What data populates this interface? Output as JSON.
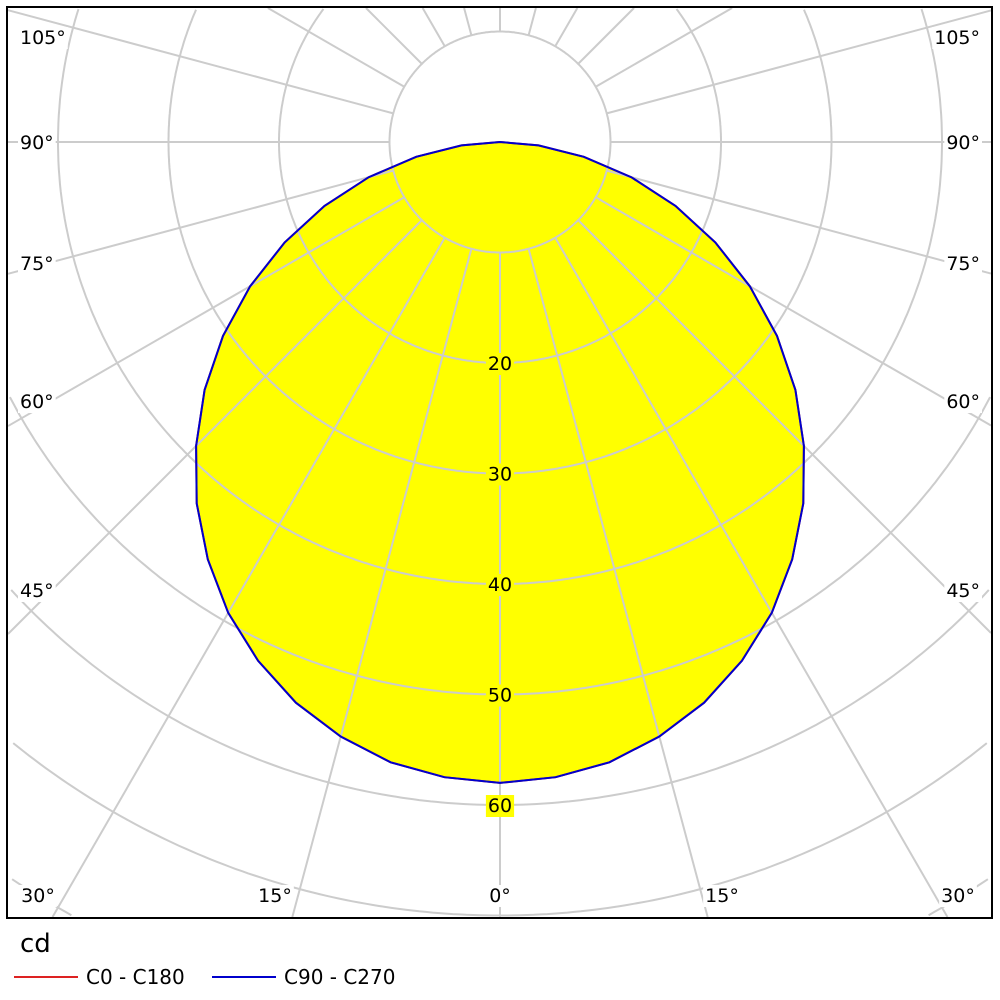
{
  "chart_data": {
    "type": "polar",
    "unit": "cd",
    "radial_ticks": [
      20,
      30,
      40,
      50,
      60
    ],
    "radial_tick_labels": [
      "20",
      "30",
      "40",
      "50",
      "60"
    ],
    "grid_rings": [
      10,
      20,
      30,
      40,
      50,
      60,
      70,
      80,
      90
    ],
    "grid_angle_step_deg": 15,
    "angle_labels_left": [
      "105°",
      "90°",
      "75°",
      "60°",
      "45°",
      "30°",
      "15°"
    ],
    "angle_label_center": "0°",
    "angle_labels_right": [
      "15°",
      "30°",
      "45°",
      "60°",
      "75°",
      "90°",
      "105°"
    ],
    "grid": true,
    "legend_placement": "bottom-left",
    "colors": {
      "grid": "#cccccc",
      "fill": "#ffff00",
      "c0_c180": "#dd2222",
      "c90_c270": "#0000cc"
    },
    "angles_deg": [
      0,
      5,
      10,
      15,
      20,
      25,
      30,
      35,
      40,
      45,
      50,
      55,
      60,
      65,
      70,
      75,
      80,
      85,
      90
    ],
    "series": [
      {
        "name": "C0 - C180",
        "values": [
          58.0,
          57.7,
          57.0,
          55.7,
          54.0,
          51.8,
          49.2,
          46.1,
          42.7,
          38.9,
          34.9,
          30.6,
          26.1,
          21.5,
          16.9,
          12.3,
          7.7,
          3.5,
          0
        ]
      },
      {
        "name": "C90 - C270",
        "values": [
          58.0,
          57.7,
          57.0,
          55.7,
          54.0,
          51.8,
          49.2,
          46.1,
          42.7,
          38.9,
          34.9,
          30.6,
          26.1,
          21.5,
          16.9,
          12.3,
          7.7,
          3.5,
          0
        ]
      }
    ]
  }
}
